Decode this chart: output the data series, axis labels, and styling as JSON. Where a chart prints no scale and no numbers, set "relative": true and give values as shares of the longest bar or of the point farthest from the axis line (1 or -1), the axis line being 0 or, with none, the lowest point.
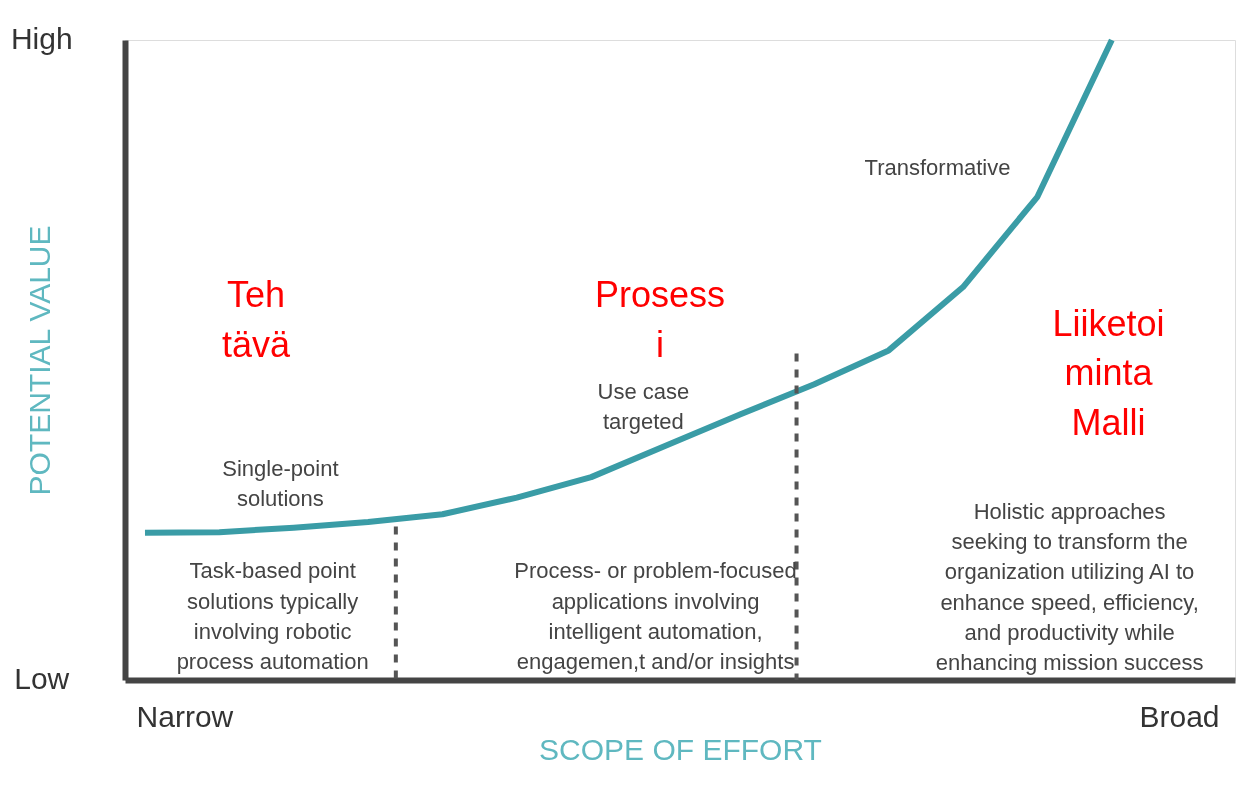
{
  "chart_data": {
    "type": "line",
    "xlabel": "SCOPE OF EFFORT",
    "ylabel": "POTENTIAL VALUE",
    "relative": true,
    "categories": [
      null,
      null,
      null,
      null,
      null,
      null,
      null,
      null,
      null,
      null,
      null,
      null,
      null,
      null
    ],
    "series": [
      {
        "color": "#3a9ca6",
        "values": [
          0.23,
          0.231,
          0.238,
          0.247,
          0.259,
          0.285,
          0.317,
          0.366,
          0.415,
          0.462,
          0.515,
          0.614,
          0.755,
          1
        ]
      }
    ],
    "annotations": [
      "Teh\ntävä",
      "Prosess\ni",
      "Liiketoi\nminta\nMalli",
      "Transformative",
      "Use case\ntargeted",
      "Single-point\nsolutions",
      "Task-based point\nsolutions typically\ninvolving robotic\nprocess automation",
      "Process- or problem-focused\napplications involving\nintelligent automation,\nengagemen,t and/or insights",
      "Holistic approaches\nseeking to transform the\norganization utilizing AI to\nenhance speed, efficiency,\nand productivity while\nenhancing mission success",
      "Low",
      "High",
      "Narrow",
      "Broad"
    ],
    "marker": "none",
    "line_style": "solid"
  }
}
